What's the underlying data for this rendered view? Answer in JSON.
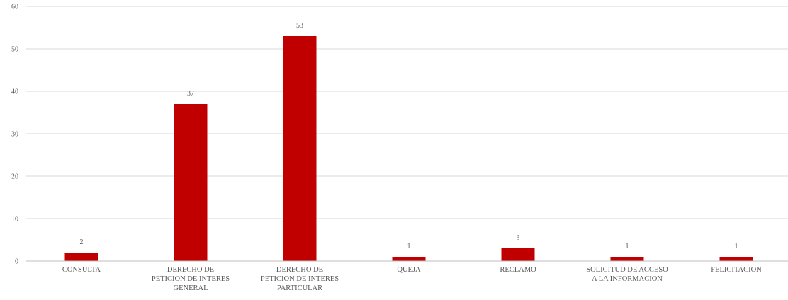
{
  "chart_data": {
    "type": "bar",
    "categories": [
      [
        "CONSULTA"
      ],
      [
        "DERECHO DE",
        "PETICION DE INTERES",
        "GENERAL"
      ],
      [
        "DERECHO DE",
        "PETICION DE INTERES",
        "PARTICULAR"
      ],
      [
        "QUEJA"
      ],
      [
        "RECLAMO"
      ],
      [
        "SOLICITUD DE ACCESO",
        "A LA INFORMACION"
      ],
      [
        "FELICITACION"
      ]
    ],
    "values": [
      2,
      37,
      53,
      1,
      3,
      1,
      1
    ],
    "data_labels": [
      "2",
      "37",
      "53",
      "1",
      "3",
      "1",
      "1"
    ],
    "ylim": [
      0,
      60
    ],
    "yticks": [
      0,
      10,
      20,
      30,
      40,
      50,
      60
    ],
    "grid": true,
    "legend": "none",
    "bar_color": "#c00000"
  }
}
